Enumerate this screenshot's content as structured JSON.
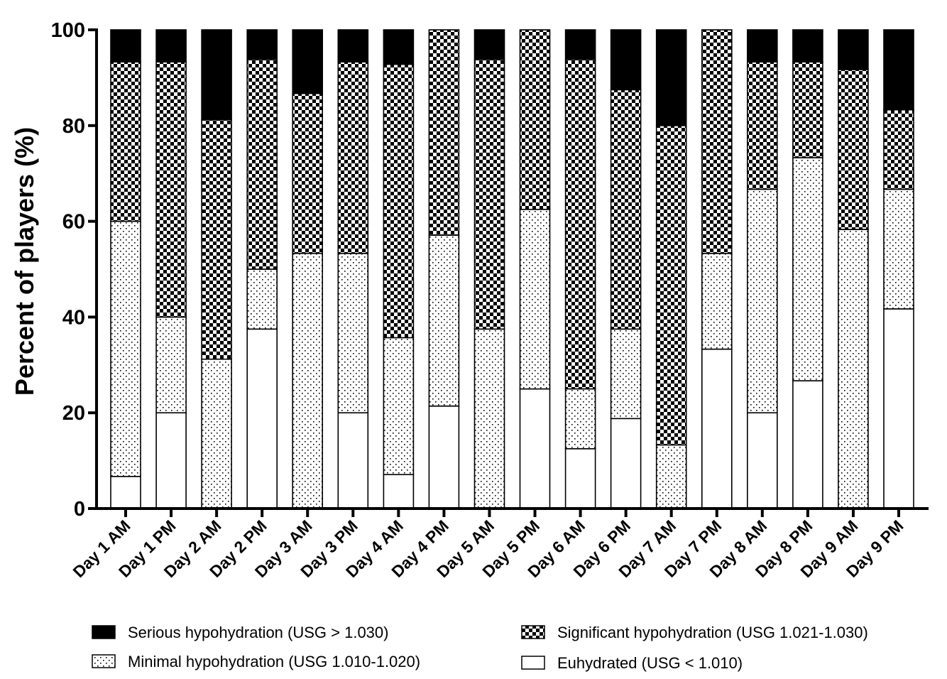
{
  "chart_data": {
    "type": "bar",
    "stacked": true,
    "title": "",
    "xlabel": "",
    "ylabel": "Percent of players (%)",
    "ylim": [
      0,
      100
    ],
    "yticks": [
      0,
      20,
      40,
      60,
      80,
      100
    ],
    "grid": false,
    "legend_position": "bottom",
    "categories": [
      "Day 1 AM",
      "Day 1 PM",
      "Day 2 AM",
      "Day 2 PM",
      "Day 3 AM",
      "Day 3 PM",
      "Day 4 AM",
      "Day 4 PM",
      "Day 5 AM",
      "Day 5 PM",
      "Day 6 AM",
      "Day 6 PM",
      "Day 7 AM",
      "Day 7 PM",
      "Day 8 AM",
      "Day 8 PM",
      "Day 9 AM",
      "Day 9 PM"
    ],
    "series": [
      {
        "name": "Euhydrated (USG < 1.010)",
        "fill": "blank",
        "values": [
          6.7,
          20.0,
          0.0,
          37.5,
          0.0,
          20.0,
          7.1,
          21.4,
          0.0,
          25.0,
          12.5,
          18.8,
          0.0,
          33.3,
          20.0,
          26.7,
          0.0,
          41.7
        ]
      },
      {
        "name": "Minimal hypohydration (USG 1.010-1.020)",
        "fill": "dots",
        "values": [
          53.3,
          20.0,
          31.2,
          12.5,
          53.3,
          33.3,
          28.6,
          35.7,
          37.5,
          37.5,
          12.5,
          18.7,
          13.3,
          20.0,
          46.7,
          46.6,
          58.3,
          25.0
        ]
      },
      {
        "name": "Significant hypohydration (USG 1.021-1.030)",
        "fill": "checker",
        "values": [
          33.3,
          53.3,
          50.0,
          43.8,
          33.4,
          40.0,
          57.1,
          42.9,
          56.3,
          37.5,
          68.8,
          50.0,
          66.7,
          46.7,
          26.6,
          20.0,
          33.4,
          16.6
        ]
      },
      {
        "name": "Serious hypohydration (USG > 1.030)",
        "fill": "solid",
        "values": [
          6.7,
          6.7,
          18.8,
          6.2,
          13.3,
          6.7,
          7.2,
          0.0,
          6.2,
          0.0,
          6.2,
          12.5,
          20.0,
          0.0,
          6.7,
          6.7,
          8.3,
          16.7
        ]
      }
    ]
  },
  "legend": {
    "serious": "Serious hypohydration (USG > 1.030)",
    "significant": "Significant hypohydration (USG 1.021-1.030)",
    "minimal": "Minimal hypohydration (USG 1.010-1.020)",
    "euhydrated": "Euhydrated (USG < 1.010)"
  }
}
